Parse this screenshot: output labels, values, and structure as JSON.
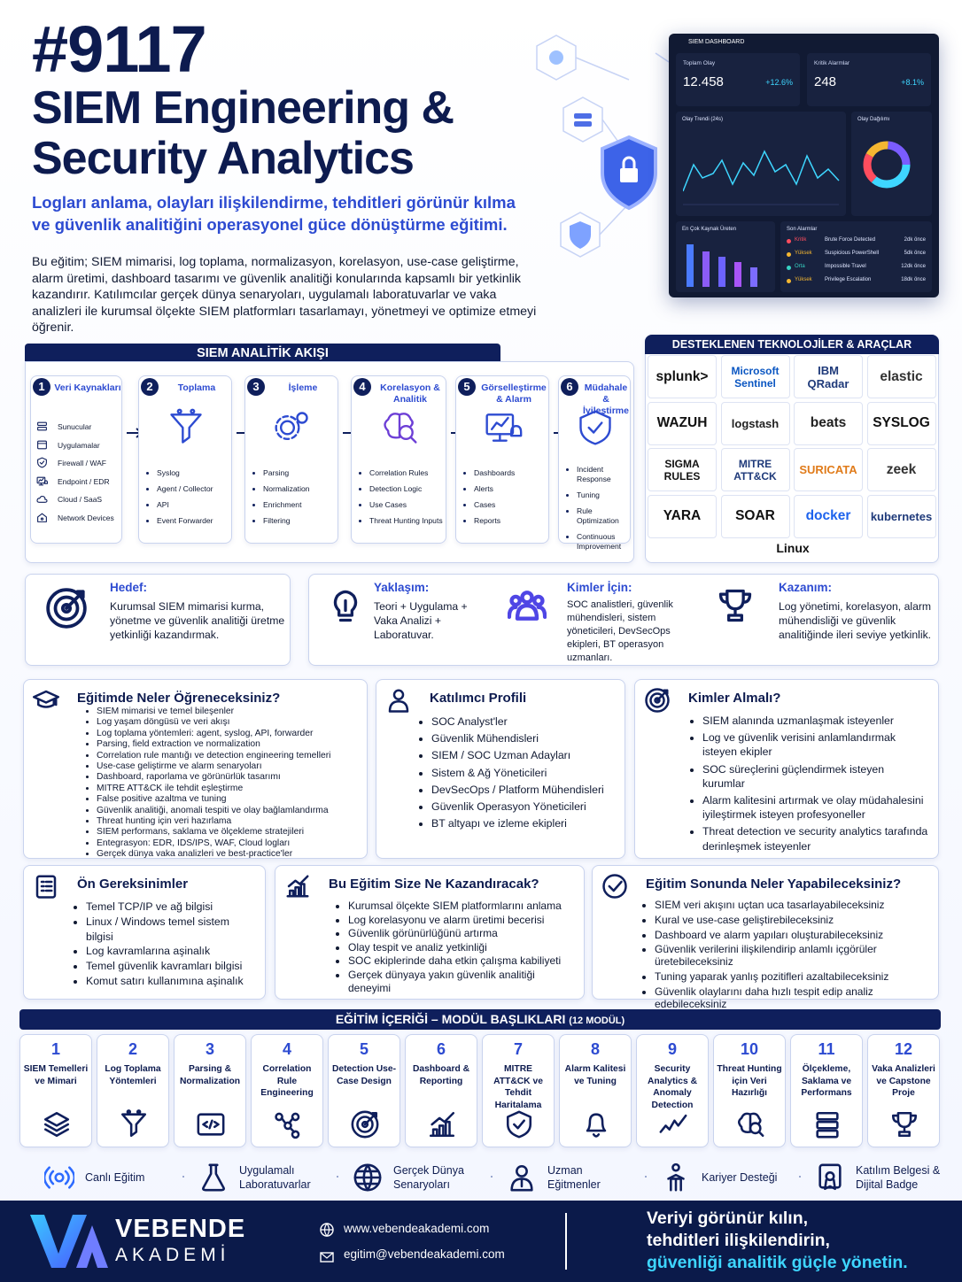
{
  "header": {
    "code": "#9117",
    "title_lines": [
      "SIEM Engineering &",
      "Security Analytics"
    ],
    "subtitle": "Logları anlama, olayları ilişkilendirme, tehditleri görünür kılma ve güvenlik analitiğini operasyonel güce dönüştürme eğitimi.",
    "description": "Bu eğitim; SIEM mimarisi, log toplama, normalizasyon, korelasyon, use-case geliştirme, alarm üretimi, dashboard tasarımı ve güvenlik analitiği konularında kapsamlı bir yetkinlik kazandırır. Katılımcılar gerçek dünya senaryoları, uygulamalı laboratuvarlar ve vaka analizleri ile kurumsal ölçekte SIEM platformları tasarlamayı, yönetmeyi ve optimize etmeyi öğrenir."
  },
  "dashboard": {
    "title": "SIEM DASHBOARD",
    "kpis": [
      {
        "label": "Toplam Olay",
        "value": "12.458",
        "change": "+12.6%"
      },
      {
        "label": "Kritik Alarmlar",
        "value": "248",
        "change": "+8.1%"
      }
    ],
    "panels": [
      "Olay Trendi (24s)",
      "Olay Dağılımı",
      "En Çok Kaynak Üreten",
      "Son Alarmlar"
    ],
    "alerts": [
      {
        "severity": "Kritik",
        "color": "#ff4d5e",
        "name": "Brute Force Detected",
        "time": "2dk önce"
      },
      {
        "severity": "Yüksek",
        "color": "#f5b731",
        "name": "Suspicious PowerShell",
        "time": "5dk önce"
      },
      {
        "severity": "Orta",
        "color": "#37d3c4",
        "name": "Impossible Travel",
        "time": "12dk önce"
      },
      {
        "severity": "Yüksek",
        "color": "#f5b731",
        "name": "Privilege Escalation",
        "time": "18dk önce"
      }
    ]
  },
  "flow": {
    "title": "SIEM ANALİTİK AKIŞI",
    "steps": [
      {
        "number": 1,
        "title": "Veri Kaynakları",
        "items": [
          "Sunucular",
          "Uygulamalar",
          "Firewall / WAF",
          "Endpoint / EDR",
          "Cloud / SaaS",
          "Network Devices"
        ]
      },
      {
        "number": 2,
        "title": "Toplama",
        "items": [
          "Syslog",
          "Agent / Collector",
          "API",
          "Event Forwarder"
        ]
      },
      {
        "number": 3,
        "title": "İşleme",
        "items": [
          "Parsing",
          "Normalization",
          "Enrichment",
          "Filtering"
        ]
      },
      {
        "number": 4,
        "title": "Korelasyon & Analitik",
        "items": [
          "Correlation Rules",
          "Detection Logic",
          "Use Cases",
          "Threat Hunting Inputs"
        ]
      },
      {
        "number": 5,
        "title": "Görselleştirme & Alarm",
        "items": [
          "Dashboards",
          "Alerts",
          "Cases",
          "Reports"
        ]
      },
      {
        "number": 6,
        "title": "Müdahale & İyileştirme",
        "items": [
          "Incident Response",
          "Tuning",
          "Rule Optimization",
          "Continuous Improvement"
        ]
      }
    ]
  },
  "tools": {
    "title": "DESTEKLENEN TEKNOLOJİLER & ARAÇLAR",
    "items": [
      {
        "name": "splunk>",
        "color": "#111111"
      },
      {
        "name": "Microsoft Sentinel",
        "color": "#0a56c2"
      },
      {
        "name": "IBM QRadar",
        "color": "#1f3a7a"
      },
      {
        "name": "elastic",
        "color": "#333333"
      },
      {
        "name": "WAZUH",
        "color": "#111111"
      },
      {
        "name": "logstash",
        "color": "#222222"
      },
      {
        "name": "beats",
        "color": "#222222"
      },
      {
        "name": "SYSLOG",
        "color": "#111111"
      },
      {
        "name": "SIGMA RULES",
        "color": "#111111"
      },
      {
        "name": "MITRE ATT&CK",
        "color": "#1f3a7a"
      },
      {
        "name": "SURICATA",
        "color": "#e07b1a"
      },
      {
        "name": "zeek",
        "color": "#333333"
      },
      {
        "name": "YARA",
        "color": "#111111"
      },
      {
        "name": "SOAR",
        "color": "#111111"
      },
      {
        "name": "docker",
        "color": "#1d63ed"
      },
      {
        "name": "kubernetes",
        "color": "#1f3a7a"
      },
      {
        "name": "Linux",
        "color": "#111111"
      }
    ]
  },
  "highlights": [
    {
      "title": "Hedef:",
      "text": "Kurumsal SIEM mimarisi kurma, yönetme ve güvenlik analitiği üretme yetkinliği kazandırmak."
    },
    {
      "title": "Yaklaşım:",
      "text": "Teori + Uygulama + Vaka Analizi + Laboratuvar."
    },
    {
      "title": "Kimler İçin:",
      "text": "SOC analistleri, güvenlik mühendisleri, sistem yöneticileri, DevSecOps ekipleri, BT operasyon uzmanları."
    },
    {
      "title": "Kazanım:",
      "text": "Log yönetimi, korelasyon, alarm mühendisliği ve güvenlik analitiğinde ileri seviye yetkinlik."
    }
  ],
  "sections": [
    {
      "title": "Eğitimde Neler Öğreneceksiniz?",
      "items": [
        "SIEM mimarisi ve temel bileşenler",
        "Log yaşam döngüsü ve veri akışı",
        "Log toplama yöntemleri: agent, syslog, API, forwarder",
        "Parsing, field extraction ve normalization",
        "Correlation rule mantığı ve detection engineering temelleri",
        "Use-case geliştirme ve alarm senaryoları",
        "Dashboard, raporlama ve görünürlük tasarımı",
        "MITRE ATT&CK ile tehdit eşleştirme",
        "False positive azaltma ve tuning",
        "Güvenlik analitiği, anomali tespiti ve olay bağlamlandırma",
        "Threat hunting için veri hazırlama",
        "SIEM performans, saklama ve ölçekleme stratejileri",
        "Entegrasyon: EDR, IDS/IPS, WAF, Cloud logları",
        "Gerçek dünya vaka analizleri ve best-practice'ler"
      ]
    },
    {
      "title": "Katılımcı Profili",
      "items": [
        "SOC Analyst'ler",
        "Güvenlik Mühendisleri",
        "SIEM / SOC Uzman Adayları",
        "Sistem & Ağ Yöneticileri",
        "DevSecOps / Platform Mühendisleri",
        "Güvenlik Operasyon Yöneticileri",
        "BT altyapı ve izleme ekipleri"
      ]
    },
    {
      "title": "Kimler Almalı?",
      "items": [
        "SIEM alanında uzmanlaşmak isteyenler",
        "Log ve güvenlik verisini anlamlandırmak isteyen ekipler",
        "SOC süreçlerini güçlendirmek isteyen kurumlar",
        "Alarm kalitesini artırmak ve olay müdahalesini iyileştirmek isteyen profesyoneller",
        "Threat detection ve security analytics tarafında derinleşmek isteyenler"
      ]
    },
    {
      "title": "Ön Gereksinimler",
      "items": [
        "Temel TCP/IP ve ağ bilgisi",
        "Linux / Windows temel sistem bilgisi",
        "Log kavramlarına aşinalık",
        "Temel güvenlik kavramları bilgisi",
        "Komut satırı kullanımına aşinalık"
      ]
    },
    {
      "title": "Bu Eğitim Size Ne Kazandıracak?",
      "items": [
        "Kurumsal ölçekte SIEM platformlarını anlama",
        "Log korelasyonu ve alarm üretimi becerisi",
        "Güvenlik görünürlüğünü artırma",
        "Olay tespit ve analiz yetkinliği",
        "SOC ekiplerinde daha etkin çalışma kabiliyeti",
        "Gerçek dünyaya yakın güvenlik analitiği deneyimi"
      ]
    },
    {
      "title": "Eğitim Sonunda Neler Yapabileceksiniz?",
      "items": [
        "SIEM veri akışını uçtan uca tasarlayabileceksiniz",
        "Kural ve use-case geliştirebileceksiniz",
        "Dashboard ve alarm yapıları oluşturabileceksiniz",
        "Güvenlik verilerini ilişkilendirip anlamlı içgörüler üretebileceksiniz",
        "Tuning yaparak yanlış pozitifleri azaltabileceksiniz",
        "Güvenlik olaylarını daha hızlı tespit edip analiz edebileceksiniz"
      ]
    }
  ],
  "modules": {
    "title": "EĞİTİM İÇERİĞİ – MODÜL BAŞLIKLARI",
    "count": "(12 MODÜL)",
    "items": [
      {
        "number": 1,
        "title": "SIEM Temelleri ve Mimari"
      },
      {
        "number": 2,
        "title": "Log Toplama Yöntemleri"
      },
      {
        "number": 3,
        "title": "Parsing & Normalization"
      },
      {
        "number": 4,
        "title": "Correlation Rule Engineering"
      },
      {
        "number": 5,
        "title": "Detection Use-Case Design"
      },
      {
        "number": 6,
        "title": "Dashboard & Reporting"
      },
      {
        "number": 7,
        "title": "MITRE ATT&CK ve Tehdit Haritalama"
      },
      {
        "number": 8,
        "title": "Alarm Kalitesi ve Tuning"
      },
      {
        "number": 9,
        "title": "Security Analytics & Anomaly Detection"
      },
      {
        "number": 10,
        "title": "Threat Hunting için Veri Hazırlığı"
      },
      {
        "number": 11,
        "title": "Ölçekleme, Saklama ve Performans"
      },
      {
        "number": 12,
        "title": "Vaka Analizleri ve Capstone Proje"
      }
    ]
  },
  "features": [
    "Canlı Eğitim",
    "Uygulamalı Laboratuvarlar",
    "Gerçek Dünya Senaryoları",
    "Uzman Eğitmenler",
    "Kariyer Desteği",
    "Katılım Belgesi & Dijital Badge"
  ],
  "footer": {
    "brand": "VEBENDE",
    "sub": "AKADEMİ",
    "website": "www.vebendeakademi.com",
    "email": "egitim@vebendeakademi.com",
    "tagline": [
      "Veriyi görünür kılın,",
      "tehditleri ilişkilendirin,",
      "güvenliği analitik güçle yönetin."
    ]
  }
}
